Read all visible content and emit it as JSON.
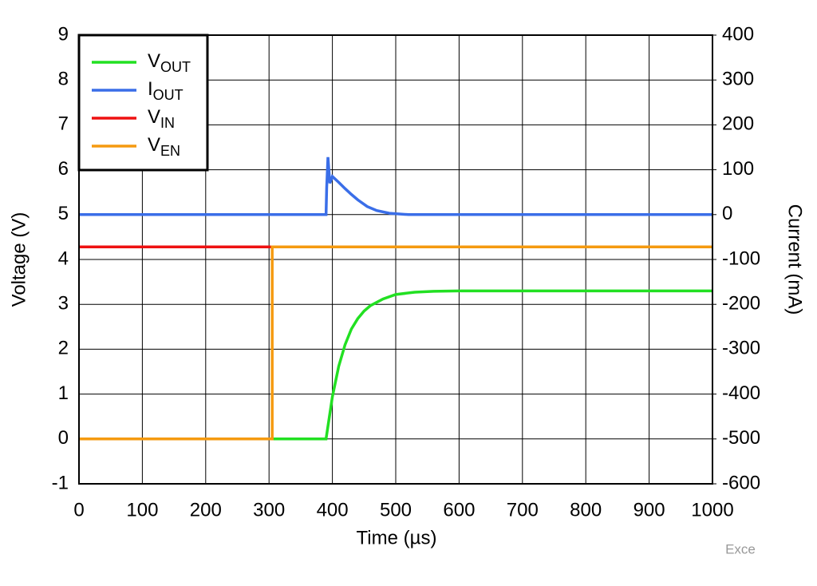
{
  "chart_data": {
    "type": "line",
    "xlabel": "Time (µs)",
    "ylabel": "Voltage (V)",
    "y2label": "Current (mA)",
    "xlim": [
      0,
      1000
    ],
    "xticks": [
      0,
      100,
      200,
      300,
      400,
      500,
      600,
      700,
      800,
      900,
      1000
    ],
    "ylim": [
      -1,
      9
    ],
    "yticks": [
      -1,
      0,
      1,
      2,
      3,
      4,
      5,
      6,
      7,
      8,
      9
    ],
    "y2lim": [
      -600,
      400
    ],
    "y2ticks": [
      -600,
      -500,
      -400,
      -300,
      -200,
      -100,
      0,
      100,
      200,
      300,
      400
    ],
    "grid": true,
    "legend": "upper-left",
    "series": [
      {
        "name": "VOUT",
        "color": "#22e022",
        "x": [
          305,
          390,
          400,
          410,
          420,
          430,
          440,
          450,
          460,
          480,
          500,
          530,
          560,
          600,
          1000
        ],
        "values": [
          0,
          0,
          0.94,
          1.62,
          2.1,
          2.45,
          2.68,
          2.85,
          2.97,
          3.12,
          3.22,
          3.27,
          3.29,
          3.3,
          3.3
        ]
      },
      {
        "name": "IOUT",
        "color": "#3a6ee8",
        "axis": "y2",
        "x": [
          0,
          390,
          391,
          393,
          396,
          400,
          410,
          420,
          430,
          440,
          455,
          470,
          490,
          520,
          560,
          1000
        ],
        "values": [
          0,
          0,
          60,
          128,
          70,
          85,
          72,
          58,
          45,
          33,
          18,
          9,
          3,
          0,
          0,
          0
        ]
      },
      {
        "name": "VIN",
        "color": "#ee1111",
        "x": [
          0,
          305
        ],
        "values": [
          4.28,
          4.28
        ]
      },
      {
        "name": "VEN",
        "color": "#f59a10",
        "x": [
          0,
          305,
          305,
          1000
        ],
        "values": [
          0,
          0,
          4.28,
          4.28
        ]
      }
    ],
    "watermark": "Exce"
  }
}
